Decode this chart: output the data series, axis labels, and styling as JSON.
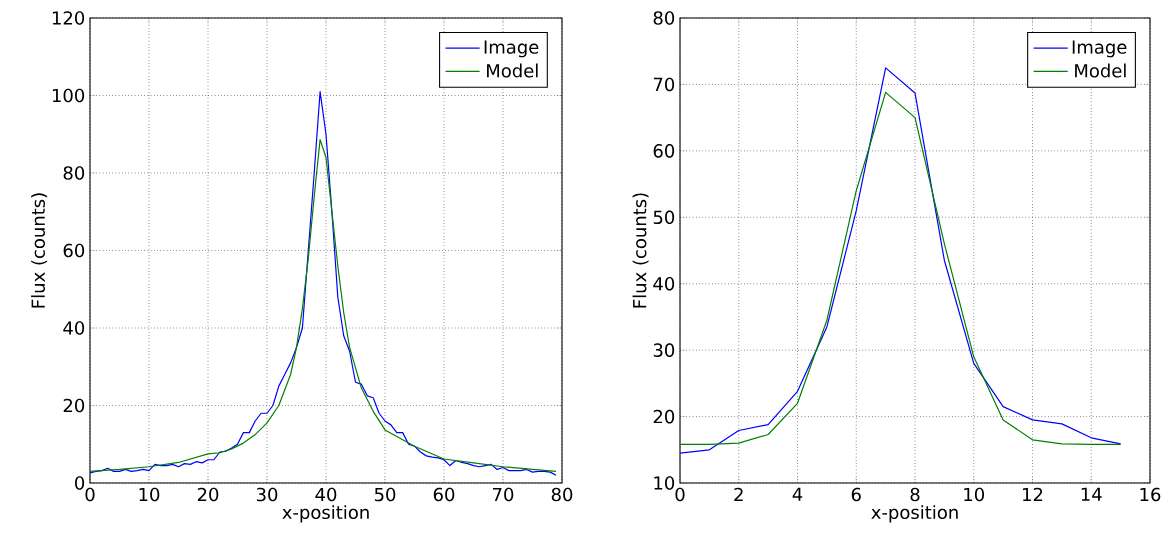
{
  "chart_data": [
    {
      "type": "line",
      "xlabel": "x-position",
      "ylabel": "Flux (counts)",
      "xlim": [
        0,
        80
      ],
      "ylim": [
        0,
        120
      ],
      "xticks": [
        0,
        10,
        20,
        30,
        40,
        50,
        60,
        70,
        80
      ],
      "yticks": [
        0,
        20,
        40,
        60,
        80,
        100,
        120
      ],
      "grid": true,
      "legend": "top right",
      "series": [
        {
          "name": "Image",
          "color": "#0000ff",
          "x": [
            0,
            1,
            2,
            3,
            4,
            5,
            6,
            7,
            8,
            9,
            10,
            11,
            12,
            13,
            14,
            15,
            16,
            17,
            18,
            19,
            20,
            21,
            22,
            23,
            24,
            25,
            26,
            27,
            28,
            29,
            30,
            31,
            32,
            33,
            34,
            35,
            36,
            37,
            38,
            39,
            40,
            41,
            42,
            43,
            44,
            45,
            46,
            47,
            48,
            49,
            50,
            51,
            52,
            53,
            54,
            55,
            56,
            57,
            58,
            59,
            60,
            61,
            62,
            63,
            64,
            65,
            66,
            67,
            68,
            69,
            70,
            71,
            72,
            73,
            74,
            75,
            76,
            77,
            78,
            79
          ],
          "values": [
            2.6,
            3,
            3.2,
            3.8,
            3,
            3,
            3.5,
            3,
            3.2,
            3.5,
            3.2,
            4.8,
            4.5,
            4.5,
            4.8,
            4.2,
            5,
            4.8,
            5.5,
            5.2,
            6,
            6,
            8,
            8.2,
            9,
            10,
            13,
            13,
            16,
            18,
            18,
            20,
            25,
            28,
            31,
            35,
            40,
            60,
            80,
            101,
            90,
            70,
            48,
            38,
            34,
            26,
            25.5,
            22.5,
            22,
            18,
            16,
            15,
            13,
            13,
            10,
            9.5,
            8,
            7,
            6.7,
            6.5,
            6,
            4.5,
            5.8,
            5.3,
            5,
            4.5,
            4.2,
            4.5,
            4.8,
            3.5,
            4,
            3.2,
            3.2,
            3.2,
            3.5,
            2.8,
            3,
            3,
            2.8,
            2
          ]
        },
        {
          "name": "Model",
          "color": "#008000",
          "x": [
            0,
            5,
            10,
            15,
            20,
            22,
            24,
            26,
            28,
            30,
            32,
            34,
            35,
            36,
            37,
            38,
            39,
            40,
            41,
            42,
            43,
            44,
            46,
            48,
            50,
            55,
            60,
            65,
            70,
            75,
            79
          ],
          "values": [
            3,
            3.5,
            4.2,
            5.3,
            7.5,
            7.8,
            8.8,
            10.3,
            12.5,
            15.5,
            20,
            28,
            35,
            45,
            58,
            74,
            88.6,
            84,
            70,
            56,
            44,
            35,
            24.5,
            18.5,
            13.7,
            9.5,
            6.2,
            5.2,
            4.2,
            3.5,
            3
          ]
        }
      ]
    },
    {
      "type": "line",
      "xlabel": "x-position",
      "ylabel": "Flux (counts)",
      "xlim": [
        0,
        16
      ],
      "ylim": [
        10,
        80
      ],
      "xticks": [
        0,
        2,
        4,
        6,
        8,
        10,
        12,
        14,
        16
      ],
      "yticks": [
        10,
        20,
        30,
        40,
        50,
        60,
        70,
        80
      ],
      "grid": true,
      "legend": "top right",
      "x": [
        0,
        1,
        2,
        3,
        4,
        5,
        6,
        7,
        8,
        9,
        10,
        11,
        12,
        13,
        14,
        15
      ],
      "series": [
        {
          "name": "Image",
          "color": "#0000ff",
          "values": [
            14.5,
            15,
            17.9,
            18.8,
            23.8,
            33.5,
            51,
            72.5,
            68.7,
            43.5,
            28,
            21.5,
            19.5,
            18.9,
            16.8,
            15.9
          ]
        },
        {
          "name": "Model",
          "color": "#008000",
          "values": [
            15.8,
            15.8,
            16,
            17.3,
            22,
            34.5,
            54,
            68.8,
            65,
            46,
            29,
            19.5,
            16.5,
            15.9,
            15.8,
            15.8
          ]
        }
      ]
    }
  ]
}
